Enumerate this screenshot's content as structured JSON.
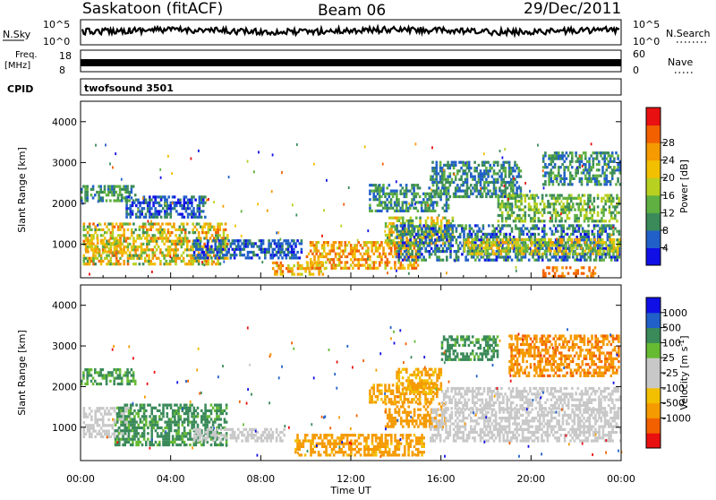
{
  "header": {
    "station": "Saskatoon (fitACF)",
    "beam": "Beam 06",
    "date": "29/Dec/2011"
  },
  "strips": {
    "nsky_label": "N.Sky",
    "nsky_top": "10^5",
    "nsky_bottom": "10^0",
    "nsearch_label": "N.Search",
    "nsearch_top": "10^5",
    "nsearch_bottom": "10^0",
    "freq_label": "Freq.",
    "freq_unit": "[MHz]",
    "freq_top": "18",
    "freq_bottom": "8",
    "nave_label": "Nave",
    "nave_top": "60",
    "nave_bottom": "0",
    "cpid_label": "CPID",
    "cpid_value": "twofsound 3501"
  },
  "colors": {
    "power": [
      "#1010e6",
      "#2060c8",
      "#3a8a5a",
      "#5fb040",
      "#b8d020",
      "#f2c000",
      "#f59a00",
      "#f26000",
      "#e81010"
    ],
    "velocity": [
      "#e81010",
      "#f26000",
      "#f59a00",
      "#f2c000",
      "#c8c8c8",
      "#c8c8c8",
      "#66bb33",
      "#3a8a5a",
      "#2060c8",
      "#1010e6"
    ]
  },
  "chart_data": [
    {
      "type": "heatmap",
      "name": "power",
      "ylabel": "Slant Range [km]",
      "yticks": [
        "1000",
        "2000",
        "3000",
        "4000"
      ],
      "ylim": [
        180,
        4500
      ],
      "xlim": [
        "00:00",
        "24:00"
      ],
      "colorbar_label": "Power [dB]",
      "colorbar_ticks": [
        "4",
        "8",
        "12",
        "16",
        "20",
        "24",
        "28"
      ],
      "colorbar_range": [
        0,
        36
      ],
      "regions": [
        {
          "t": [
            0.0,
            2.4
          ],
          "r": [
            2100,
            2500
          ],
          "v": [
            6,
            16
          ]
        },
        {
          "t": [
            0.1,
            6.5
          ],
          "r": [
            550,
            1600
          ],
          "v": [
            10,
            30
          ]
        },
        {
          "t": [
            0.2,
            1.8
          ],
          "r": [
            850,
            1200
          ],
          "v": [
            18,
            28
          ]
        },
        {
          "t": [
            2.0,
            5.5
          ],
          "r": [
            1700,
            2200
          ],
          "v": [
            2,
            10
          ]
        },
        {
          "t": [
            5.0,
            9.8
          ],
          "r": [
            700,
            1150
          ],
          "v": [
            2,
            10
          ]
        },
        {
          "t": [
            8.5,
            10.8
          ],
          "r": [
            300,
            600
          ],
          "v": [
            16,
            30
          ]
        },
        {
          "t": [
            10.0,
            15.0
          ],
          "r": [
            450,
            1100
          ],
          "v": [
            18,
            32
          ]
        },
        {
          "t": [
            13.5,
            16.5
          ],
          "r": [
            1050,
            1700
          ],
          "v": [
            10,
            28
          ]
        },
        {
          "t": [
            14.0,
            24.0
          ],
          "r": [
            650,
            1500
          ],
          "v": [
            2,
            14
          ]
        },
        {
          "t": [
            12.8,
            16.3
          ],
          "r": [
            1850,
            2500
          ],
          "v": [
            4,
            16
          ]
        },
        {
          "t": [
            15.5,
            19.5
          ],
          "r": [
            2200,
            3100
          ],
          "v": [
            4,
            14
          ]
        },
        {
          "t": [
            18.5,
            24.0
          ],
          "r": [
            1600,
            2300
          ],
          "v": [
            8,
            20
          ]
        },
        {
          "t": [
            20.5,
            24.0
          ],
          "r": [
            2500,
            3300
          ],
          "v": [
            4,
            16
          ]
        },
        {
          "t": [
            20.5,
            22.8
          ],
          "r": [
            250,
            520
          ],
          "v": [
            26,
            32
          ]
        },
        {
          "t": [
            17.0,
            24.0
          ],
          "r": [
            800,
            1200
          ],
          "v": [
            12,
            26
          ]
        }
      ]
    },
    {
      "type": "heatmap",
      "name": "velocity",
      "ylabel": "Slant Range [km]",
      "yticks": [
        "1000",
        "2000",
        "3000",
        "4000"
      ],
      "ylim": [
        180,
        4500
      ],
      "xlim": [
        "00:00",
        "24:00"
      ],
      "xticks": [
        "00:00",
        "04:00",
        "08:00",
        "12:00",
        "16:00",
        "20:00",
        "00:00"
      ],
      "xlabel": "Time UT",
      "colorbar_label": "Velocity [m s^-1]",
      "colorbar_ticks": [
        "1000",
        "500",
        "100",
        "25",
        "-25",
        "-100",
        "-500",
        "-1000"
      ],
      "colorbar_range": [
        -1500,
        1500
      ],
      "regions": [
        {
          "t": [
            0.0,
            2.4
          ],
          "r": [
            2100,
            2500
          ],
          "v": [
            60,
            150
          ]
        },
        {
          "t": [
            0.1,
            2.2
          ],
          "r": [
            800,
            1550
          ],
          "v": [
            -25,
            25
          ]
        },
        {
          "t": [
            1.5,
            6.5
          ],
          "r": [
            600,
            1600
          ],
          "v": [
            50,
            300
          ]
        },
        {
          "t": [
            5.0,
            9.0
          ],
          "r": [
            700,
            1050
          ],
          "v": [
            -25,
            25
          ]
        },
        {
          "t": [
            9.5,
            15.2
          ],
          "r": [
            350,
            900
          ],
          "v": [
            -300,
            -70
          ]
        },
        {
          "t": [
            13.5,
            16.2
          ],
          "r": [
            1050,
            1650
          ],
          "v": [
            -400,
            -100
          ]
        },
        {
          "t": [
            12.8,
            15.8
          ],
          "r": [
            1650,
            2100
          ],
          "v": [
            -250,
            -60
          ]
        },
        {
          "t": [
            15.5,
            24.0
          ],
          "r": [
            700,
            1500
          ],
          "v": [
            -25,
            25
          ]
        },
        {
          "t": [
            16.0,
            24.0
          ],
          "r": [
            1500,
            2050
          ],
          "v": [
            -20,
            20
          ]
        },
        {
          "t": [
            16.0,
            18.5
          ],
          "r": [
            2700,
            3300
          ],
          "v": [
            50,
            400
          ]
        },
        {
          "t": [
            19.0,
            24.0
          ],
          "r": [
            2300,
            3300
          ],
          "v": [
            -600,
            -200
          ]
        },
        {
          "t": [
            14.0,
            16.0
          ],
          "r": [
            1900,
            2500
          ],
          "v": [
            -200,
            -50
          ]
        }
      ]
    }
  ]
}
